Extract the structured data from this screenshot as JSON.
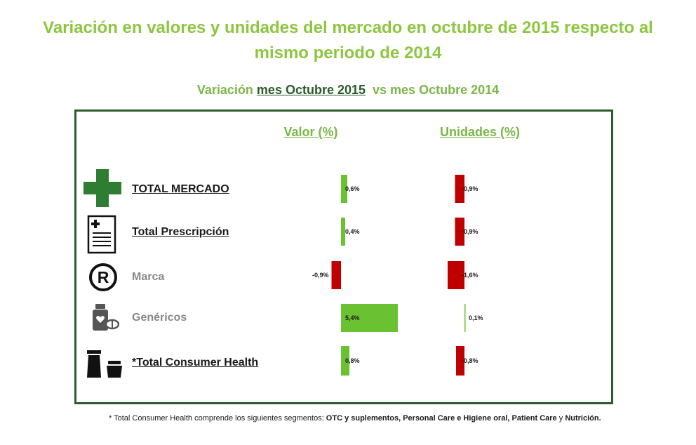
{
  "title_line1": "Variación en valores y unidades del mercado en octubre de 2015 respecto al",
  "title_line2": "mismo periodo de 2014",
  "subtitle": {
    "pre": "Variación ",
    "underlined": "mes Octubre 2015",
    "post": "  vs mes Octubre 2014"
  },
  "columns": {
    "valor": "Valor (%)",
    "unidades": "Unidades (%)"
  },
  "rows": [
    {
      "label": "TOTAL MERCADO",
      "icon": "green-cross-icon"
    },
    {
      "label": "Total Prescripción",
      "icon": "prescription-icon"
    },
    {
      "label": "Marca",
      "icon": "registered-icon"
    },
    {
      "label": "Genéricos",
      "icon": "pill-bottle-icon"
    },
    {
      "label": "*Total Consumer Health",
      "icon": "cosmetics-icon"
    }
  ],
  "chart_data": {
    "type": "bar",
    "categories": [
      "TOTAL MERCADO",
      "Total Prescripción",
      "Marca",
      "Genéricos",
      "*Total Consumer Health"
    ],
    "series": [
      {
        "name": "Valor (%)",
        "values": [
          0.6,
          0.4,
          -0.9,
          5.4,
          0.8
        ],
        "labels": [
          "0,6%",
          "0,4%",
          "-0,9%",
          "5,4%",
          "0,8%"
        ]
      },
      {
        "name": "Unidades (%)",
        "values": [
          -0.9,
          -0.9,
          -1.6,
          0.1,
          -0.8
        ],
        "labels": [
          "-0,9%",
          "-0,9%",
          "-1,6%",
          "0,1%",
          "-0,8%"
        ]
      }
    ],
    "colors": {
      "positive": "#6ac232",
      "negative": "#c00000"
    }
  },
  "footnote": {
    "pre": "* Total Consumer Health comprende los siguientes segmentos: ",
    "bold1": "OTC y suplementos, Personal Care e Higiene oral, Patient Care",
    "mid": " y ",
    "bold2": "Nutrición."
  }
}
